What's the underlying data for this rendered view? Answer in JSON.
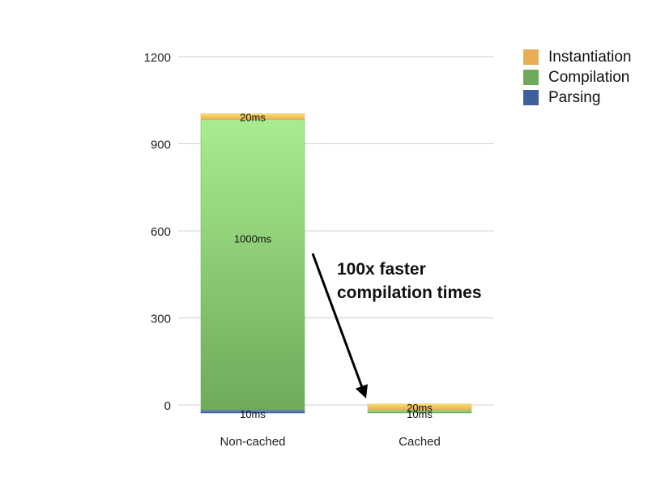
{
  "chart_data": {
    "type": "bar",
    "stacked": true,
    "categories": [
      "Non-cached",
      "Cached"
    ],
    "series": [
      {
        "name": "Parsing",
        "values": [
          10,
          0
        ],
        "labels": [
          "10ms",
          ""
        ]
      },
      {
        "name": "Compilation",
        "values": [
          1000,
          10
        ],
        "labels": [
          "1000ms",
          "10ms"
        ]
      },
      {
        "name": "Instantiation",
        "values": [
          20,
          20
        ],
        "labels": [
          "20ms",
          "20ms"
        ]
      }
    ],
    "ylim": [
      0,
      1200
    ],
    "yticks": [
      0,
      300,
      600,
      900,
      1200
    ],
    "grid": true,
    "legend_position": "top-right",
    "colors": {
      "Parsing": "#3f5f9c",
      "Compilation": "#6faa5a",
      "Instantiation": "#e8ae55"
    }
  },
  "legend": {
    "items": [
      {
        "name": "Instantiation",
        "color": "#e8ae55"
      },
      {
        "name": "Compilation",
        "color": "#6faa5a"
      },
      {
        "name": "Parsing",
        "color": "#3f5f9c"
      }
    ]
  },
  "annotation": {
    "line1": "100x faster",
    "line2": "compilation times"
  }
}
